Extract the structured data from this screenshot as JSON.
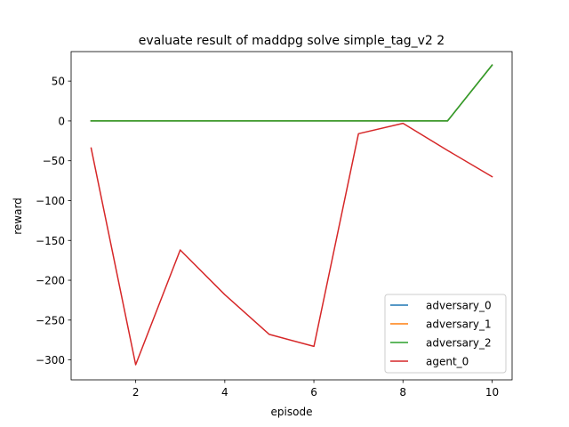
{
  "chart_data": {
    "type": "line",
    "title": "evaluate result of maddpg solve simple_tag_v2 2",
    "xlabel": "episode",
    "ylabel": "reward",
    "x": [
      1,
      2,
      3,
      4,
      5,
      6,
      7,
      8,
      9,
      10
    ],
    "xlim": [
      0.55,
      10.45
    ],
    "ylim": [
      -325,
      87
    ],
    "xticks": [
      2,
      4,
      6,
      8,
      10
    ],
    "yticks": [
      -300,
      -250,
      -200,
      -150,
      -100,
      -50,
      0,
      50
    ],
    "xtick_labels": [
      "2",
      "4",
      "6",
      "8",
      "10"
    ],
    "ytick_labels": [
      "−300",
      "−250",
      "−200",
      "−150",
      "−100",
      "−50",
      "0",
      "50"
    ],
    "grid": false,
    "legend_position": "lower right",
    "series": [
      {
        "name": "adversary_0",
        "color": "#1f77b4",
        "values": [
          0,
          0,
          0,
          0,
          0,
          0,
          0,
          0,
          0,
          70
        ]
      },
      {
        "name": "adversary_1",
        "color": "#ff7f0e",
        "values": [
          0,
          0,
          0,
          0,
          0,
          0,
          0,
          0,
          0,
          70
        ]
      },
      {
        "name": "adversary_2",
        "color": "#2ca02c",
        "values": [
          0,
          0,
          0,
          0,
          0,
          0,
          0,
          0,
          0,
          70
        ]
      },
      {
        "name": "agent_0",
        "color": "#d62728",
        "values": [
          -34,
          -306,
          -162,
          -218,
          -268,
          -283,
          -16,
          -3,
          -37,
          -70
        ]
      }
    ]
  }
}
